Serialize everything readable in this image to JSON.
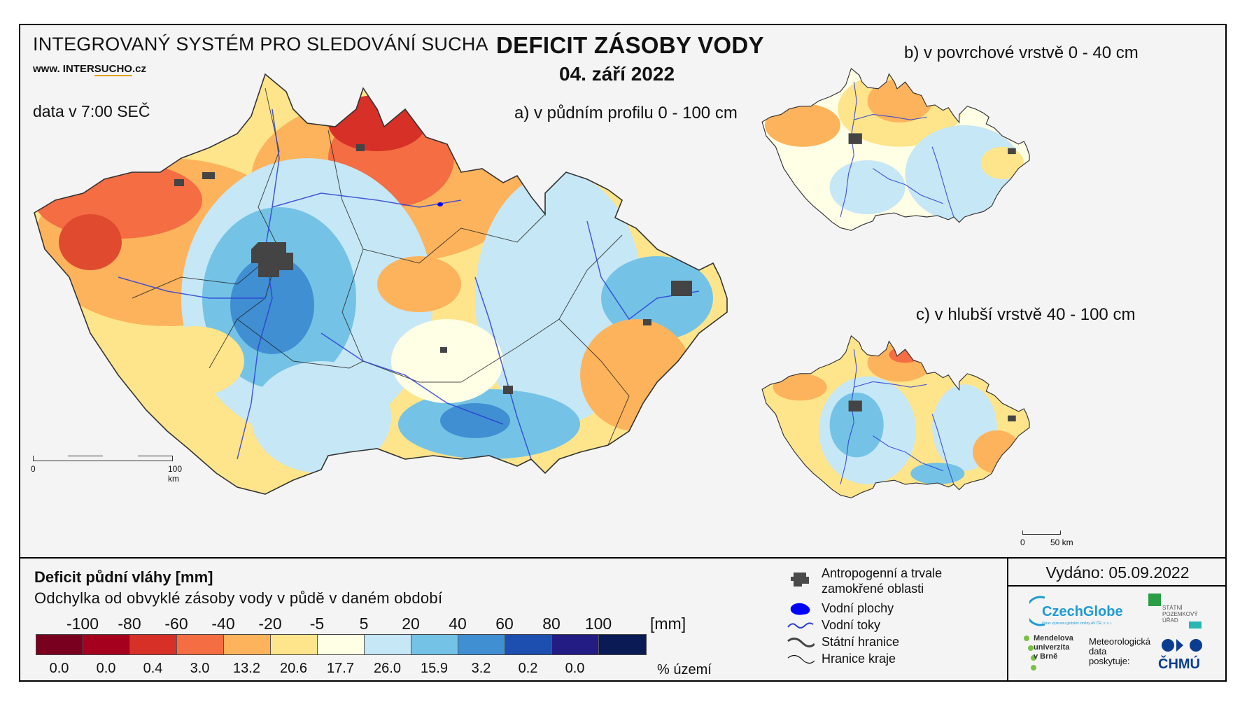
{
  "header": {
    "system_title": "INTEGROVANÝ SYSTÉM PRO SLEDOVÁNÍ SUCHA",
    "url_prefix": "www. INTER",
    "url_highlight": "SUCHO",
    "url_suffix": ".cz",
    "data_time": "data v 7:00 SEČ",
    "main_title": "DEFICIT ZÁSOBY VODY",
    "main_date": "04. září 2022"
  },
  "maps": {
    "a_label": "a) v půdním profilu 0 - 100 cm",
    "b_label": "b) v povrchové vrstvě 0 - 40 cm",
    "c_label": "c) v hlubší vrstvě 40 - 100 cm",
    "scale_main": {
      "start": "0",
      "end": "100 km"
    },
    "scale_small": {
      "start": "0",
      "end": "50 km"
    }
  },
  "legend": {
    "title": "Deficit půdní vláhy  [mm]",
    "subtitle": "Odchylka od obvyklé zásoby vody v půdě v daném období",
    "ticks": [
      "-100",
      "-80",
      "-60",
      "-40",
      "-20",
      "-5",
      "5",
      "20",
      "40",
      "60",
      "80",
      "100"
    ],
    "unit": "[mm]",
    "colors": [
      "#7a0020",
      "#a5001e",
      "#d73027",
      "#f46d43",
      "#fdb35b",
      "#fee58b",
      "#ffffe6",
      "#c6e7f5",
      "#74c3e6",
      "#3f8fd2",
      "#1c4fb0",
      "#231c84",
      "#0a1a55"
    ],
    "percent_values": [
      "0.0",
      "0.0",
      "0.4",
      "3.0",
      "13.2",
      "20.6",
      "17.7",
      "26.0",
      "15.9",
      "3.2",
      "0.2",
      "0.0"
    ],
    "percent_unit": "% území"
  },
  "symbols": [
    {
      "icon": "urban-area-icon",
      "label_line1": "Antropogenní a trvale",
      "label_line2": "zamokřené oblasti"
    },
    {
      "icon": "water-body-icon",
      "label_line1": "Vodní plochy",
      "label_line2": ""
    },
    {
      "icon": "river-icon",
      "label_line1": "Vodní toky",
      "label_line2": ""
    },
    {
      "icon": "state-border-icon",
      "label_line1": "Státní hranice",
      "label_line2": ""
    },
    {
      "icon": "region-border-icon",
      "label_line1": "Hranice kraje",
      "label_line2": ""
    }
  ],
  "issued": "Vydáno: 05.09.2022",
  "logos": {
    "czechglobe": "CzechGlobe",
    "czechglobe_sub": "Ústav výzkumu globální změny AV ČR, v. v. i.",
    "spu": [
      "STÁTNÍ",
      "POZEMKOVÝ",
      "ÚŘAD"
    ],
    "mendelu": [
      "Mendelova",
      "univerzita",
      "v Brně"
    ],
    "meteo": [
      "Meteorologická",
      "data",
      "poskytuje:"
    ],
    "chmu": "ČHMÚ"
  }
}
